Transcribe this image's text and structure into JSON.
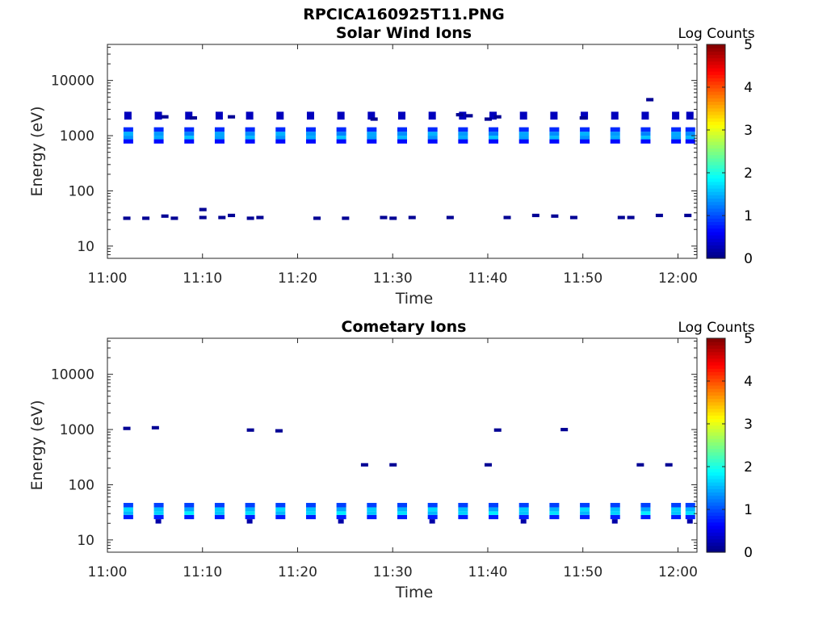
{
  "figure": {
    "title": "RPCICA160925T11.PNG"
  },
  "chart_data": [
    {
      "type": "heatmap",
      "title": "Solar Wind Ions",
      "xlabel": "Time",
      "ylabel": "Energy (eV)",
      "y_scale": "log",
      "xlim": [
        "11:00",
        "12:02"
      ],
      "ylim": [
        6,
        45000
      ],
      "xticks": [
        "11:00",
        "11:10",
        "11:20",
        "11:30",
        "11:40",
        "11:50",
        "12:00"
      ],
      "yticks": [
        "10",
        "100",
        "1000",
        "10000"
      ],
      "colorbar": {
        "label": "Log Counts",
        "range": [
          0,
          5
        ],
        "ticks": [
          "0",
          "1",
          "2",
          "3",
          "4",
          "5"
        ],
        "colormap": "jet"
      },
      "sweep_minutes": [
        2.2,
        5.4,
        8.6,
        11.8,
        15.0,
        18.2,
        21.4,
        24.6,
        27.8,
        31.0,
        34.2,
        37.4,
        40.6,
        43.8,
        47.0,
        50.2,
        53.4,
        56.6,
        59.8,
        61.3
      ],
      "beam_core_eV": 1000,
      "beam_core_log_counts": 1.5,
      "beam_upper_eV": 2300,
      "beam_upper_log_counts": 0.3,
      "sparse_low_hits": [
        {
          "time": "11:02",
          "eV": 32
        },
        {
          "time": "11:04",
          "eV": 32
        },
        {
          "time": "11:06",
          "eV": 35
        },
        {
          "time": "11:07",
          "eV": 32
        },
        {
          "time": "11:10",
          "eV": 33
        },
        {
          "time": "11:10",
          "eV": 46
        },
        {
          "time": "11:12",
          "eV": 33
        },
        {
          "time": "11:13",
          "eV": 36
        },
        {
          "time": "11:15",
          "eV": 32
        },
        {
          "time": "11:16",
          "eV": 33
        },
        {
          "time": "11:22",
          "eV": 32
        },
        {
          "time": "11:25",
          "eV": 32
        },
        {
          "time": "11:29",
          "eV": 33
        },
        {
          "time": "11:30",
          "eV": 32
        },
        {
          "time": "11:32",
          "eV": 33
        },
        {
          "time": "11:36",
          "eV": 33
        },
        {
          "time": "11:42",
          "eV": 33
        },
        {
          "time": "11:45",
          "eV": 36
        },
        {
          "time": "11:47",
          "eV": 35
        },
        {
          "time": "11:49",
          "eV": 33
        },
        {
          "time": "11:54",
          "eV": 33
        },
        {
          "time": "11:55",
          "eV": 33
        },
        {
          "time": "11:58",
          "eV": 36
        },
        {
          "time": "12:01",
          "eV": 36
        }
      ],
      "sparse_high_hits": [
        {
          "time": "11:06",
          "eV": 2200
        },
        {
          "time": "11:09",
          "eV": 2100
        },
        {
          "time": "11:13",
          "eV": 2200
        },
        {
          "time": "11:28",
          "eV": 2000
        },
        {
          "time": "11:37",
          "eV": 2400
        },
        {
          "time": "11:38",
          "eV": 2300
        },
        {
          "time": "11:40",
          "eV": 2000
        },
        {
          "time": "11:41",
          "eV": 2200
        },
        {
          "time": "11:50",
          "eV": 2100
        },
        {
          "time": "11:57",
          "eV": 4500
        }
      ]
    },
    {
      "type": "heatmap",
      "title": "Cometary Ions",
      "xlabel": "Time",
      "ylabel": "Energy (eV)",
      "y_scale": "log",
      "xlim": [
        "11:00",
        "12:02"
      ],
      "ylim": [
        6,
        45000
      ],
      "xticks": [
        "11:00",
        "11:10",
        "11:20",
        "11:30",
        "11:40",
        "11:50",
        "12:00"
      ],
      "yticks": [
        "10",
        "100",
        "1000",
        "10000"
      ],
      "colorbar": {
        "label": "Log Counts",
        "range": [
          0,
          5
        ],
        "ticks": [
          "0",
          "1",
          "2",
          "3",
          "4",
          "5"
        ],
        "colormap": "jet"
      },
      "sweep_minutes": [
        2.2,
        5.4,
        8.6,
        11.8,
        15.0,
        18.2,
        21.4,
        24.6,
        27.8,
        31.0,
        34.2,
        37.4,
        40.6,
        43.8,
        47.0,
        50.2,
        53.4,
        56.6,
        59.8,
        61.3
      ],
      "beam_core_eV": 33,
      "beam_core_log_counts": 1.7,
      "sparse_high_hits": [
        {
          "time": "11:02",
          "eV": 1050
        },
        {
          "time": "11:05",
          "eV": 1080
        },
        {
          "time": "11:15",
          "eV": 980
        },
        {
          "time": "11:18",
          "eV": 950
        },
        {
          "time": "11:27",
          "eV": 230
        },
        {
          "time": "11:30",
          "eV": 230
        },
        {
          "time": "11:40",
          "eV": 230
        },
        {
          "time": "11:41",
          "eV": 980
        },
        {
          "time": "11:48",
          "eV": 1000
        },
        {
          "time": "11:56",
          "eV": 230
        },
        {
          "time": "11:59",
          "eV": 230
        }
      ]
    }
  ]
}
